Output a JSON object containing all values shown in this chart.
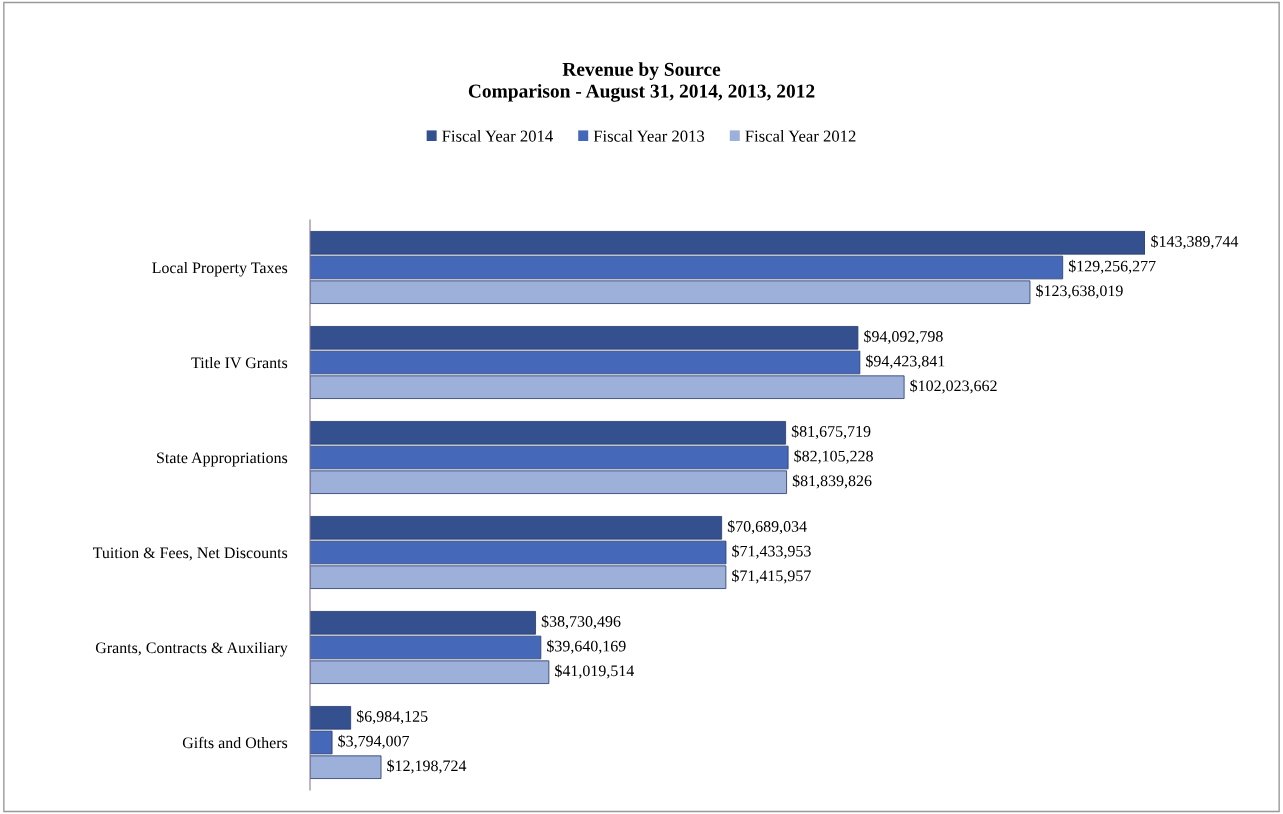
{
  "chart_data": {
    "type": "bar",
    "orientation": "horizontal",
    "title": "Revenue by Source\nComparison - August 31, 2014, 2013, 2012",
    "categories": [
      "Local Property Taxes",
      "Title IV Grants",
      "State Appropriations",
      "Tuition & Fees, Net Discounts",
      "Grants, Contracts & Auxiliary",
      "Gifts and Others"
    ],
    "series": [
      {
        "name": "Fiscal Year 2014",
        "color": "#34508f",
        "values": [
          143389744,
          94092798,
          81675719,
          70689034,
          38730496,
          6984125
        ],
        "value_labels": [
          "$143,389,744",
          "$94,092,798",
          "$81,675,719",
          "$70,689,034",
          "$38,730,496",
          "$6,984,125"
        ]
      },
      {
        "name": "Fiscal Year 2013",
        "color": "#4568b8",
        "values": [
          129256277,
          94423841,
          82105228,
          71433953,
          39640169,
          3794007
        ],
        "value_labels": [
          "$129,256,277",
          "$94,423,841",
          "$82,105,228",
          "$71,433,953",
          "$39,640,169",
          "$3,794,007"
        ]
      },
      {
        "name": "Fiscal Year 2012",
        "color": "#9cb0da",
        "values": [
          123638019,
          102023662,
          81839826,
          71415957,
          41019514,
          12198724
        ],
        "value_labels": [
          "$123,638,019",
          "$102,023,662",
          "$81,839,826",
          "$71,415,957",
          "$41,019,514",
          "$12,198,724"
        ]
      }
    ],
    "legend": "top",
    "grid": false
  }
}
